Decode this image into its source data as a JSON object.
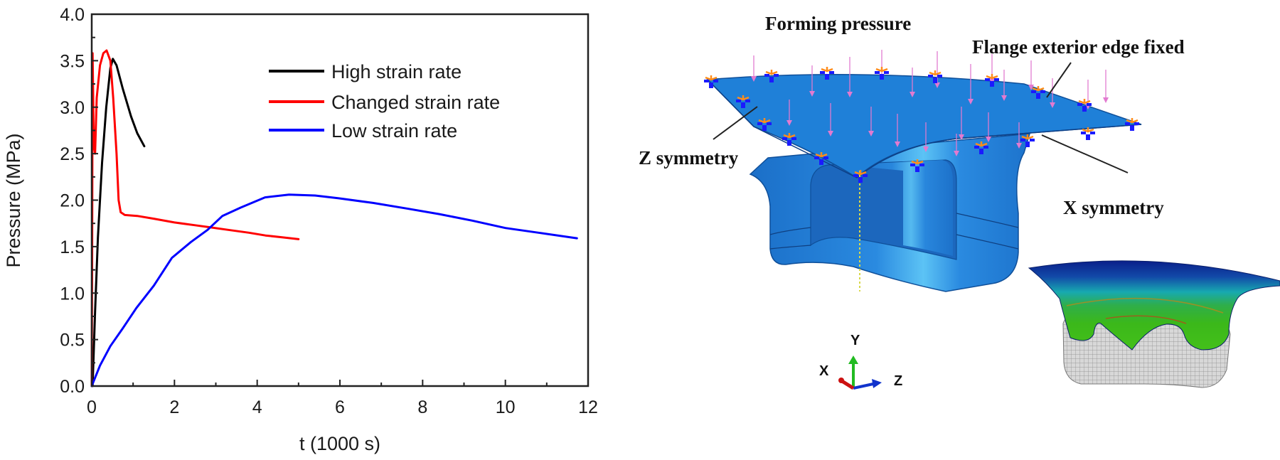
{
  "chart_data": {
    "type": "line",
    "title": "",
    "xlabel": "t (1000 s)",
    "ylabel": "Pressure (MPa)",
    "xlim": [
      0,
      12
    ],
    "ylim": [
      0,
      4.0
    ],
    "xticks": [
      "0",
      "2",
      "4",
      "6",
      "8",
      "10",
      "12"
    ],
    "xtick_values": [
      0,
      2,
      4,
      6,
      8,
      10,
      12
    ],
    "yticks": [
      "0.0",
      "0.5",
      "1.0",
      "1.5",
      "2.0",
      "2.5",
      "3.0",
      "3.5",
      "4.0"
    ],
    "ytick_values": [
      0,
      0.5,
      1.0,
      1.5,
      2.0,
      2.5,
      3.0,
      3.5,
      4.0
    ],
    "grid": false,
    "legend_position": "top-right",
    "series": [
      {
        "name": "High strain rate",
        "color": "#000000",
        "x": [
          0.02,
          0.08,
          0.15,
          0.25,
          0.35,
          0.45,
          0.51,
          0.6,
          0.75,
          0.95,
          1.1,
          1.27
        ],
        "y": [
          0.0,
          0.8,
          1.6,
          2.4,
          3.0,
          3.42,
          3.52,
          3.45,
          3.2,
          2.9,
          2.72,
          2.58
        ]
      },
      {
        "name": "Changed strain rate",
        "color": "#ff0000",
        "x": [
          0.0,
          0.01,
          0.02,
          0.05,
          0.08,
          0.12,
          0.2,
          0.28,
          0.36,
          0.45,
          0.52,
          0.6,
          0.65,
          0.7,
          0.8,
          1.1,
          1.5,
          2.0,
          2.5,
          2.82,
          3.3,
          3.8,
          4.2,
          4.6,
          5.0
        ],
        "y": [
          0.0,
          1.5,
          3.58,
          2.6,
          2.5,
          3.1,
          3.45,
          3.58,
          3.61,
          3.5,
          3.1,
          2.5,
          2.0,
          1.87,
          1.84,
          1.83,
          1.8,
          1.76,
          1.73,
          1.71,
          1.68,
          1.65,
          1.62,
          1.6,
          1.58
        ]
      },
      {
        "name": "Low strain rate",
        "color": "#0000ff",
        "x": [
          0.0,
          0.2,
          0.45,
          0.75,
          1.08,
          1.5,
          1.94,
          2.4,
          2.8,
          3.16,
          3.6,
          4.19,
          4.77,
          5.4,
          5.97,
          6.8,
          7.62,
          8.4,
          9.2,
          10.0,
          10.8,
          11.73
        ],
        "y": [
          0.0,
          0.22,
          0.43,
          0.62,
          0.84,
          1.08,
          1.38,
          1.55,
          1.68,
          1.83,
          1.92,
          2.03,
          2.06,
          2.05,
          2.02,
          1.97,
          1.91,
          1.85,
          1.78,
          1.7,
          1.65,
          1.59
        ]
      }
    ]
  },
  "diagram": {
    "labels": {
      "forming_pressure": "Forming pressure",
      "flange_fixed": "Flange exterior edge fixed",
      "z_symmetry": "Z symmetry",
      "x_symmetry": "X symmetry"
    },
    "triad": {
      "x": "X",
      "y": "Y",
      "z": "Z"
    },
    "colors": {
      "model_blue": "#1f7fd6",
      "model_dark": "#145fae",
      "load_arrow": "#e27ad0",
      "constraint_blue": "#1a1aff",
      "constraint_orange": "#ff8c1a",
      "axis_x": "#cc1111",
      "axis_y": "#22bb22",
      "axis_z": "#1133cc",
      "contour_top": "#0a1f8a",
      "contour_mid": "#17a9b0",
      "contour_low": "#33b81a",
      "mesh_grey": "#c8c8c8"
    }
  }
}
